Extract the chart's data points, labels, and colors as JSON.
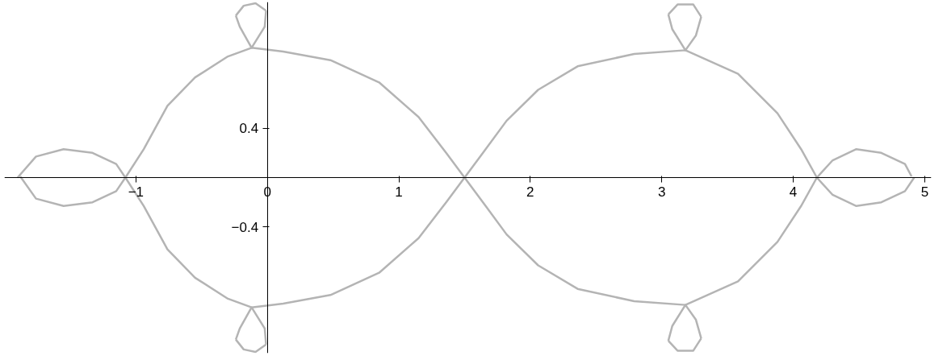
{
  "chart_data": {
    "type": "line",
    "xlim": [
      -2.0,
      5.05
    ],
    "ylim": [
      -1.42,
      1.42
    ],
    "xticks": [
      -1,
      0,
      1,
      2,
      3,
      4,
      5
    ],
    "yticks": [
      -0.4,
      {
        "value": 0,
        "label": null
      },
      0.4
    ],
    "grid": false,
    "marker": "none",
    "line_style": "solid",
    "series": [
      {
        "color": "#b4b4b4",
        "x": [
          -1.9,
          -1.76,
          -1.55,
          -1.33,
          -1.15,
          -1.08,
          -0.94,
          -0.76,
          -0.55,
          -0.3,
          -0.12,
          0.12,
          0.48,
          0.85,
          1.15,
          1.36,
          1.5,
          1.64,
          1.82,
          2.06,
          2.36,
          2.79,
          3.18,
          3.58,
          3.88,
          4.06,
          4.18,
          4.3,
          4.48,
          4.67,
          4.85,
          4.92
        ],
        "values": [
          0,
          0.17,
          0.23,
          0.2,
          0.11,
          0,
          -0.23,
          -0.58,
          -0.81,
          -0.98,
          -1.05,
          -1.02,
          -0.95,
          -0.77,
          -0.49,
          -0.2,
          0,
          0.2,
          0.46,
          0.71,
          0.9,
          1.0,
          1.03,
          0.84,
          0.52,
          0.23,
          0,
          -0.14,
          -0.23,
          -0.2,
          -0.11,
          0
        ]
      },
      {
        "color": "#b4b4b4",
        "x": [
          -1.88,
          -1.76,
          -1.55,
          -1.33,
          -1.15,
          -1.08,
          -0.94,
          -0.76,
          -0.55,
          -0.3,
          -0.12,
          0.12,
          0.48,
          0.85,
          1.15,
          1.36,
          1.5,
          1.64,
          1.82,
          2.06,
          2.36,
          2.79,
          3.18,
          3.58,
          3.88,
          4.06,
          4.18,
          4.3,
          4.48,
          4.67,
          4.85,
          4.9
        ],
        "values": [
          0.01,
          -0.17,
          -0.23,
          -0.2,
          -0.11,
          0,
          0.23,
          0.58,
          0.81,
          0.98,
          1.05,
          1.02,
          0.95,
          0.77,
          0.49,
          0.2,
          0,
          -0.2,
          -0.46,
          -0.71,
          -0.9,
          -1.0,
          -1.03,
          -0.84,
          -0.52,
          -0.23,
          0,
          0.14,
          0.23,
          0.2,
          0.11,
          0.01
        ]
      },
      {
        "color": "#b4b4b4",
        "x": [
          -0.24,
          -0.18,
          -0.09,
          -0.01
        ],
        "values": [
          1.31,
          1.39,
          1.41,
          1.35
        ]
      },
      {
        "color": "#b4b4b4",
        "x": [
          -0.24,
          -0.21,
          -0.12,
          -0.02,
          -0.01
        ],
        "values": [
          1.31,
          1.22,
          1.05,
          1.22,
          1.35
        ]
      },
      {
        "color": "#b4b4b4",
        "x": [
          -0.24,
          -0.18,
          -0.09,
          -0.01
        ],
        "values": [
          -1.31,
          -1.39,
          -1.41,
          -1.35
        ]
      },
      {
        "color": "#b4b4b4",
        "x": [
          -0.24,
          -0.21,
          -0.12,
          -0.02,
          -0.01
        ],
        "values": [
          -1.31,
          -1.22,
          -1.05,
          -1.22,
          -1.35
        ]
      },
      {
        "color": "#b4b4b4",
        "x": [
          3.05,
          3.12,
          3.24,
          3.3
        ],
        "values": [
          1.32,
          1.4,
          1.4,
          1.3
        ]
      },
      {
        "color": "#b4b4b4",
        "x": [
          3.05,
          3.08,
          3.18,
          3.26,
          3.3
        ],
        "values": [
          1.32,
          1.2,
          1.03,
          1.15,
          1.3
        ]
      },
      {
        "color": "#b4b4b4",
        "x": [
          3.05,
          3.12,
          3.24,
          3.3
        ],
        "values": [
          -1.32,
          -1.4,
          -1.4,
          -1.3
        ]
      },
      {
        "color": "#b4b4b4",
        "x": [
          3.05,
          3.08,
          3.18,
          3.26,
          3.3
        ],
        "values": [
          -1.32,
          -1.2,
          -1.03,
          -1.15,
          -1.3
        ]
      }
    ]
  }
}
